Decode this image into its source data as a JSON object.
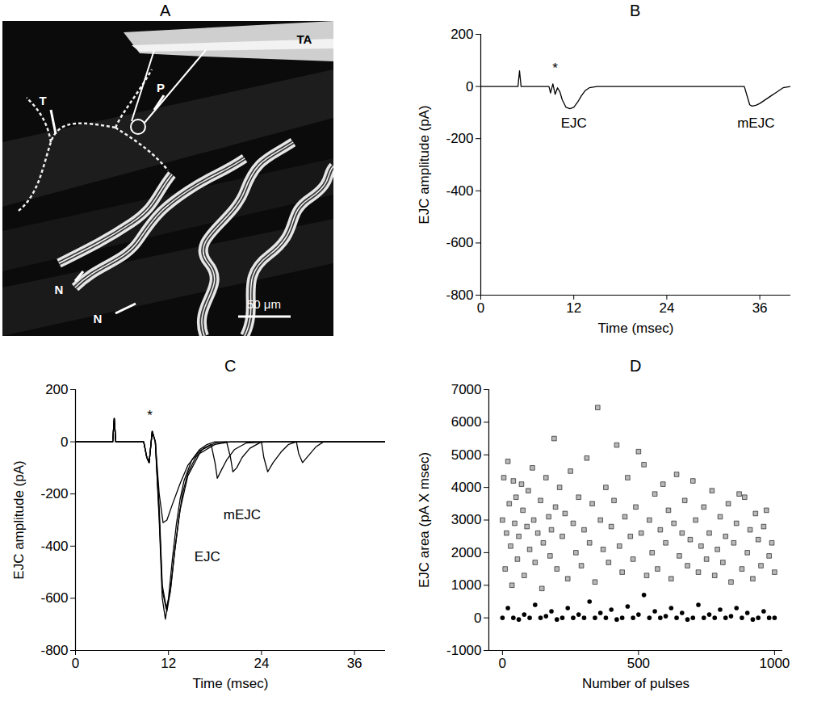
{
  "chart_data": [
    {
      "panel": "A",
      "type": "image",
      "labels": [
        "T",
        "P",
        "TA",
        "N",
        "N"
      ],
      "scale_bar": "50 μm"
    },
    {
      "panel": "B",
      "type": "line",
      "x_label": "Time (msec)",
      "y_label": "EJC amplitude (pA)",
      "xlim": [
        0,
        40
      ],
      "xticks": [
        0,
        12,
        24,
        36
      ],
      "ylim": [
        -800,
        200
      ],
      "yticks": [
        -800,
        -600,
        -400,
        -200,
        0,
        200
      ],
      "series": [
        {
          "color": "#000000",
          "x": [
            0,
            4.8,
            5,
            5.2,
            5.4,
            8.8,
            9,
            9.3,
            9.6,
            9.9,
            10.2,
            10.5,
            11,
            11.5,
            12,
            12.5,
            13,
            13.5,
            14,
            15,
            20,
            30,
            34,
            34.3,
            34.7,
            35,
            35.5,
            36,
            36.5,
            37,
            37.5,
            38,
            38.5,
            39,
            40
          ],
          "values": [
            0,
            0,
            60,
            0,
            0,
            0,
            -25,
            10,
            -30,
            -5,
            -20,
            -50,
            -80,
            -85,
            -80,
            -60,
            -35,
            -15,
            -5,
            0,
            0,
            0,
            0,
            -30,
            -70,
            -75,
            -72,
            -65,
            -55,
            -45,
            -35,
            -25,
            -15,
            -5,
            0
          ]
        }
      ],
      "annotations": [
        {
          "text": "*",
          "x": 9.6,
          "y": 70
        },
        {
          "text": "EJC",
          "x": 12,
          "y": -140
        },
        {
          "text": "mEJC",
          "x": 35.5,
          "y": -140
        }
      ]
    },
    {
      "panel": "C",
      "type": "line",
      "x_label": "Time (msec)",
      "y_label": "EJC amplitude (pA)",
      "xlim": [
        0,
        40
      ],
      "xticks": [
        0,
        12,
        24,
        36
      ],
      "ylim": [
        -800,
        200
      ],
      "yticks": [
        -800,
        -600,
        -400,
        -200,
        0,
        200
      ],
      "series": [
        {
          "color": "#000000",
          "x": [
            0,
            4.8,
            5,
            5.2,
            5.4,
            8.8,
            9.2,
            9.5,
            9.9,
            10.3,
            10.8,
            11.2,
            11.6,
            12,
            12.5,
            13,
            13.5,
            14,
            15,
            16,
            17,
            18,
            20,
            25,
            30,
            35,
            40
          ],
          "values": [
            0,
            0,
            90,
            0,
            0,
            0,
            -60,
            -80,
            40,
            0,
            -300,
            -600,
            -680,
            -600,
            -450,
            -320,
            -220,
            -150,
            -70,
            -30,
            -10,
            0,
            0,
            0,
            0,
            0,
            0
          ]
        },
        {
          "color": "#000000",
          "x": [
            0,
            4.8,
            5,
            5.2,
            5.4,
            8.8,
            9.2,
            9.5,
            9.9,
            10.3,
            10.8,
            11.2,
            11.8,
            12.3,
            12.8,
            13.3,
            13.8,
            14.5,
            15.5,
            16.5,
            17.5,
            18,
            18.3,
            18.8,
            19.5,
            20.5,
            22,
            25,
            30,
            40
          ],
          "values": [
            0,
            0,
            90,
            0,
            0,
            0,
            -60,
            -80,
            40,
            0,
            -250,
            -550,
            -650,
            -560,
            -420,
            -300,
            -200,
            -120,
            -60,
            -25,
            -10,
            -80,
            -140,
            -110,
            -70,
            -30,
            -5,
            0,
            0,
            0
          ]
        },
        {
          "color": "#000000",
          "x": [
            0,
            4.8,
            5,
            5.2,
            5.4,
            8.8,
            9.2,
            9.5,
            9.9,
            10.3,
            10.8,
            11.3,
            11.8,
            12.5,
            13.5,
            14.5,
            16,
            18,
            19.5,
            20,
            20.3,
            20.8,
            21.5,
            22.5,
            24,
            30,
            40
          ],
          "values": [
            0,
            0,
            90,
            0,
            0,
            0,
            -60,
            -80,
            40,
            0,
            -200,
            -310,
            -300,
            -240,
            -160,
            -90,
            -35,
            -5,
            0,
            -60,
            -115,
            -100,
            -60,
            -25,
            0,
            0,
            0
          ]
        },
        {
          "color": "#000000",
          "x": [
            0,
            4.8,
            5,
            5.2,
            5.4,
            8.8,
            9.2,
            9.5,
            9.9,
            10.3,
            10.8,
            11.2,
            11.7,
            12.2,
            12.8,
            13.5,
            14.5,
            16,
            18,
            20,
            24,
            24.3,
            24.8,
            25.5,
            26.5,
            27.5,
            28.5,
            28.8,
            29.3,
            30,
            31,
            32,
            40
          ],
          "values": [
            0,
            0,
            90,
            0,
            0,
            0,
            -60,
            -80,
            40,
            0,
            -280,
            -570,
            -640,
            -580,
            -420,
            -260,
            -130,
            -45,
            -10,
            0,
            0,
            -60,
            -115,
            -80,
            -40,
            -10,
            0,
            -45,
            -80,
            -55,
            -20,
            0,
            0
          ]
        }
      ],
      "annotations": [
        {
          "text": "*",
          "x": 9.6,
          "y": 100
        },
        {
          "text": "mEJC",
          "x": 21.5,
          "y": -280
        },
        {
          "text": "EJC",
          "x": 17,
          "y": -440
        }
      ]
    },
    {
      "panel": "D",
      "type": "scatter",
      "x_label": "Number of pulses",
      "y_label": "EJC area (pA X msec)",
      "xlim": [
        -50,
        1030
      ],
      "xticks": [
        0,
        500,
        1000
      ],
      "ylim": [
        -1000,
        7000
      ],
      "yticks": [
        -1000,
        0,
        1000,
        2000,
        3000,
        4000,
        5000,
        6000,
        7000
      ],
      "series": [
        {
          "marker": "square",
          "color": "#b8b8b8",
          "x": [
            0,
            5,
            10,
            15,
            20,
            25,
            30,
            35,
            40,
            45,
            50,
            55,
            60,
            70,
            75,
            80,
            90,
            95,
            100,
            110,
            115,
            120,
            130,
            140,
            145,
            150,
            160,
            170,
            175,
            180,
            190,
            195,
            200,
            210,
            220,
            230,
            240,
            250,
            260,
            270,
            280,
            290,
            300,
            310,
            320,
            330,
            340,
            350,
            360,
            370,
            380,
            390,
            400,
            410,
            420,
            430,
            440,
            450,
            460,
            470,
            480,
            490,
            500,
            510,
            520,
            530,
            540,
            550,
            560,
            570,
            580,
            590,
            600,
            610,
            620,
            630,
            640,
            650,
            660,
            670,
            680,
            690,
            700,
            710,
            720,
            730,
            740,
            750,
            760,
            770,
            780,
            790,
            800,
            810,
            820,
            830,
            840,
            850,
            860,
            870,
            880,
            890,
            900,
            910,
            920,
            930,
            940,
            950,
            960,
            970,
            980,
            990,
            1000
          ],
          "values": [
            3000,
            4300,
            1500,
            2600,
            4800,
            3500,
            2200,
            1000,
            4200,
            2900,
            3700,
            1800,
            2500,
            4100,
            3300,
            1300,
            2800,
            3900,
            2100,
            4600,
            3000,
            1700,
            2600,
            3600,
            900,
            2300,
            4300,
            3100,
            1900,
            2700,
            5500,
            3400,
            1500,
            4000,
            2500,
            3200,
            1200,
            4500,
            2900,
            2000,
            3700,
            1600,
            2700,
            4900,
            2300,
            3500,
            1100,
            6450,
            3000,
            2100,
            4000,
            1700,
            2800,
            3600,
            5300,
            2200,
            1400,
            3100,
            4300,
            2500,
            1800,
            3400,
            5100,
            2600,
            4700,
            1300,
            3000,
            2000,
            3800,
            1500,
            2700,
            4100,
            2300,
            3300,
            1200,
            2900,
            4400,
            1900,
            2600,
            3600,
            1600,
            2400,
            4200,
            3000,
            1400,
            2200,
            3400,
            1800,
            2600,
            3900,
            1300,
            2100,
            3100,
            1700,
            2500,
            3500,
            1100,
            2300,
            2900,
            3800,
            1500,
            3700,
            2000,
            2700,
            1200,
            3200,
            2400,
            1600,
            2800,
            3300,
            1900,
            2300,
            1400
          ]
        },
        {
          "marker": "circle",
          "color": "#000000",
          "x": [
            0,
            20,
            40,
            60,
            80,
            100,
            120,
            140,
            160,
            180,
            200,
            220,
            240,
            260,
            280,
            300,
            320,
            340,
            360,
            380,
            400,
            420,
            440,
            460,
            480,
            500,
            520,
            540,
            560,
            580,
            600,
            620,
            640,
            660,
            680,
            700,
            720,
            740,
            760,
            780,
            800,
            820,
            840,
            860,
            880,
            900,
            920,
            940,
            960,
            980,
            1000
          ],
          "values": [
            0,
            300,
            0,
            -50,
            100,
            0,
            400,
            0,
            50,
            200,
            -50,
            0,
            300,
            0,
            100,
            0,
            500,
            0,
            150,
            0,
            250,
            -50,
            0,
            350,
            0,
            100,
            700,
            0,
            200,
            0,
            50,
            300,
            0,
            150,
            -50,
            0,
            400,
            0,
            100,
            0,
            250,
            0,
            50,
            300,
            0,
            150,
            -50,
            0,
            200,
            0,
            0
          ]
        }
      ]
    }
  ]
}
